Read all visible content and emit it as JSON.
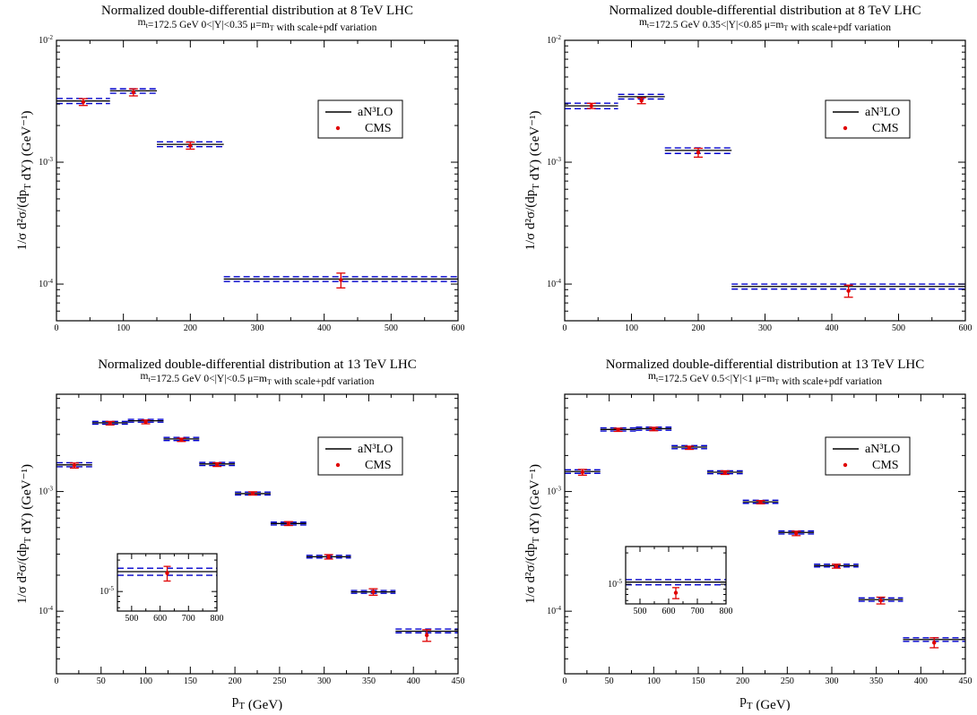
{
  "legend": {
    "theory_label": "aN³LO",
    "data_label": "CMS"
  },
  "common": {
    "ylabel": "1/σ  d²σ/(dp_T dY) (GeV⁻¹)",
    "xlabel": "p_T (GeV)"
  },
  "colors": {
    "theory_central": "#000000",
    "theory_band": "#0000cc",
    "data": "#e00000"
  },
  "chart_data": [
    {
      "type": "scatter",
      "title": "Normalized double-differential distribution at 8 TeV LHC",
      "subtitle": "m_t=172.5 GeV     0<|Y|<0.35     μ=m_T  with scale+pdf variation",
      "xlabel": "",
      "xlim": [
        0,
        600
      ],
      "xticks": [
        0,
        100,
        200,
        300,
        400,
        500,
        600
      ],
      "ylim": [
        5e-05,
        0.01
      ],
      "ylog": true,
      "yticks": [
        0.0001,
        0.001,
        0.01
      ],
      "ytick_labels": [
        "10^-4",
        "10^-3",
        "10^-2"
      ],
      "legend_position": "center-right",
      "bins": [
        {
          "x0": 0,
          "x1": 80,
          "central": 0.00318,
          "lo": 0.00303,
          "hi": 0.00333
        },
        {
          "x0": 80,
          "x1": 150,
          "central": 0.00385,
          "lo": 0.00368,
          "hi": 0.004
        },
        {
          "x0": 150,
          "x1": 250,
          "central": 0.0014,
          "lo": 0.00134,
          "hi": 0.00147
        },
        {
          "x0": 250,
          "x1": 600,
          "central": 0.00011,
          "lo": 0.000105,
          "hi": 0.000115
        }
      ],
      "cms": [
        {
          "x": 40,
          "y": 0.00312,
          "ylo": 0.00292,
          "yhi": 0.00332
        },
        {
          "x": 115,
          "y": 0.00375,
          "ylo": 0.0035,
          "yhi": 0.004
        },
        {
          "x": 200,
          "y": 0.00137,
          "ylo": 0.00128,
          "yhi": 0.00146
        },
        {
          "x": 425,
          "y": 0.000108,
          "ylo": 9.3e-05,
          "yhi": 0.000123
        }
      ]
    },
    {
      "type": "scatter",
      "title": "Normalized double-differential distribution at 8 TeV LHC",
      "subtitle": "m_t=172.5 GeV     0.35<|Y|<0.85     μ=m_T  with scale+pdf variation",
      "xlabel": "",
      "xlim": [
        0,
        600
      ],
      "xticks": [
        0,
        100,
        200,
        300,
        400,
        500,
        600
      ],
      "ylim": [
        5e-05,
        0.01
      ],
      "ylog": true,
      "yticks": [
        0.0001,
        0.001,
        0.01
      ],
      "ytick_labels": [
        "10^-4",
        "10^-3",
        "10^-2"
      ],
      "legend_position": "center-right",
      "bins": [
        {
          "x0": 0,
          "x1": 80,
          "central": 0.0029,
          "lo": 0.00275,
          "hi": 0.00305
        },
        {
          "x0": 80,
          "x1": 150,
          "central": 0.00345,
          "lo": 0.0033,
          "hi": 0.0036
        },
        {
          "x0": 150,
          "x1": 250,
          "central": 0.00125,
          "lo": 0.00118,
          "hi": 0.00131
        },
        {
          "x0": 250,
          "x1": 600,
          "central": 9.55e-05,
          "lo": 9.1e-05,
          "hi": 0.0001
        }
      ],
      "cms": [
        {
          "x": 40,
          "y": 0.0029,
          "ylo": 0.00276,
          "yhi": 0.00304
        },
        {
          "x": 115,
          "y": 0.0032,
          "ylo": 0.00302,
          "yhi": 0.00338
        },
        {
          "x": 200,
          "y": 0.0012,
          "ylo": 0.0011,
          "yhi": 0.0013
        },
        {
          "x": 425,
          "y": 8.8e-05,
          "ylo": 7.8e-05,
          "yhi": 9.8e-05
        }
      ]
    },
    {
      "type": "scatter",
      "title": "Normalized double-differential distribution at 13 TeV LHC",
      "subtitle": "m_t=172.5 GeV     0<|Y|<0.5     μ=m_T  with scale+pdf variation",
      "xlabel": "p_T (GeV)",
      "xlim": [
        0,
        450
      ],
      "xticks": [
        0,
        50,
        100,
        150,
        200,
        250,
        300,
        350,
        400,
        450
      ],
      "ylim": [
        3e-05,
        0.0065
      ],
      "ylog": true,
      "yticks": [
        0.0001,
        0.001
      ],
      "ytick_labels": [
        "10^-4",
        "10^-3"
      ],
      "legend_position": "center-right",
      "bins": [
        {
          "x0": 0,
          "x1": 40,
          "central": 0.00167,
          "lo": 0.00161,
          "hi": 0.00174
        },
        {
          "x0": 40,
          "x1": 80,
          "central": 0.00375,
          "lo": 0.00365,
          "hi": 0.00385
        },
        {
          "x0": 80,
          "x1": 120,
          "central": 0.0039,
          "lo": 0.0038,
          "hi": 0.00401
        },
        {
          "x0": 120,
          "x1": 160,
          "central": 0.00275,
          "lo": 0.00267,
          "hi": 0.00283
        },
        {
          "x0": 160,
          "x1": 200,
          "central": 0.0017,
          "lo": 0.00165,
          "hi": 0.00175
        },
        {
          "x0": 200,
          "x1": 240,
          "central": 0.00096,
          "lo": 0.000935,
          "hi": 0.00099
        },
        {
          "x0": 240,
          "x1": 280,
          "central": 0.00054,
          "lo": 0.000525,
          "hi": 0.000555
        },
        {
          "x0": 280,
          "x1": 330,
          "central": 0.000285,
          "lo": 0.000278,
          "hi": 0.000293
        },
        {
          "x0": 330,
          "x1": 380,
          "central": 0.000145,
          "lo": 0.000141,
          "hi": 0.000149
        },
        {
          "x0": 380,
          "x1": 450,
          "central": 6.8e-05,
          "lo": 6.6e-05,
          "hi": 7.1e-05
        }
      ],
      "cms": [
        {
          "x": 20,
          "y": 0.00165,
          "ylo": 0.00157,
          "yhi": 0.00173
        },
        {
          "x": 60,
          "y": 0.00372,
          "ylo": 0.0036,
          "yhi": 0.00385
        },
        {
          "x": 100,
          "y": 0.00382,
          "ylo": 0.00368,
          "yhi": 0.00396
        },
        {
          "x": 140,
          "y": 0.0027,
          "ylo": 0.00262,
          "yhi": 0.00279
        },
        {
          "x": 180,
          "y": 0.00168,
          "ylo": 0.00162,
          "yhi": 0.00174
        },
        {
          "x": 220,
          "y": 0.000965,
          "ylo": 0.000935,
          "yhi": 0.000995
        },
        {
          "x": 260,
          "y": 0.00054,
          "ylo": 0.00052,
          "yhi": 0.00056
        },
        {
          "x": 305,
          "y": 0.000285,
          "ylo": 0.000273,
          "yhi": 0.000297
        },
        {
          "x": 355,
          "y": 0.000145,
          "ylo": 0.000136,
          "yhi": 0.000154
        },
        {
          "x": 415,
          "y": 6.3e-05,
          "ylo": 5.6e-05,
          "yhi": 7e-05
        }
      ],
      "inset": {
        "xlim": [
          450,
          800
        ],
        "xticks": [
          500,
          600,
          700,
          800
        ],
        "ylim": [
          6.5e-06,
          2.3e-05
        ],
        "ylog": true,
        "yticks": [
          1e-05
        ],
        "ytick_labels": [
          "10^-5"
        ],
        "bins": [
          {
            "x0": 450,
            "x1": 800,
            "central": 1.55e-05,
            "lo": 1.43e-05,
            "hi": 1.67e-05
          }
        ],
        "cms": [
          {
            "x": 625,
            "y": 1.5e-05,
            "ylo": 1.26e-05,
            "yhi": 1.74e-05
          }
        ]
      }
    },
    {
      "type": "scatter",
      "title": "Normalized double-differential distribution at 13 TeV LHC",
      "subtitle": "m_t=172.5 GeV     0.5<|Y|<1     μ=m_T  with scale+pdf variation",
      "xlabel": "p_T (GeV)",
      "xlim": [
        0,
        450
      ],
      "xticks": [
        0,
        50,
        100,
        150,
        200,
        250,
        300,
        350,
        400,
        450
      ],
      "ylim": [
        3e-05,
        0.0065
      ],
      "ylog": true,
      "yticks": [
        0.0001,
        0.001
      ],
      "ytick_labels": [
        "10^-4",
        "10^-3"
      ],
      "legend_position": "center-right",
      "bins": [
        {
          "x0": 0,
          "x1": 40,
          "central": 0.00147,
          "lo": 0.00142,
          "hi": 0.00152
        },
        {
          "x0": 40,
          "x1": 80,
          "central": 0.0033,
          "lo": 0.0032,
          "hi": 0.0034
        },
        {
          "x0": 80,
          "x1": 120,
          "central": 0.00335,
          "lo": 0.00325,
          "hi": 0.00345
        },
        {
          "x0": 120,
          "x1": 160,
          "central": 0.00235,
          "lo": 0.00228,
          "hi": 0.00242
        },
        {
          "x0": 160,
          "x1": 200,
          "central": 0.00145,
          "lo": 0.00141,
          "hi": 0.00149
        },
        {
          "x0": 200,
          "x1": 240,
          "central": 0.00082,
          "lo": 0.000797,
          "hi": 0.000845
        },
        {
          "x0": 240,
          "x1": 280,
          "central": 0.000455,
          "lo": 0.000442,
          "hi": 0.000468
        },
        {
          "x0": 280,
          "x1": 330,
          "central": 0.00024,
          "lo": 0.000234,
          "hi": 0.000247
        },
        {
          "x0": 330,
          "x1": 380,
          "central": 0.000125,
          "lo": 0.000121,
          "hi": 0.000129
        },
        {
          "x0": 380,
          "x1": 450,
          "central": 5.8e-05,
          "lo": 5.6e-05,
          "hi": 6e-05
        }
      ],
      "cms": [
        {
          "x": 20,
          "y": 0.00145,
          "ylo": 0.00137,
          "yhi": 0.00153
        },
        {
          "x": 60,
          "y": 0.00328,
          "ylo": 0.00318,
          "yhi": 0.00338
        },
        {
          "x": 100,
          "y": 0.00333,
          "ylo": 0.00322,
          "yhi": 0.00344
        },
        {
          "x": 140,
          "y": 0.00232,
          "ylo": 0.00225,
          "yhi": 0.00239
        },
        {
          "x": 180,
          "y": 0.00144,
          "ylo": 0.00139,
          "yhi": 0.00149
        },
        {
          "x": 220,
          "y": 0.000815,
          "ylo": 0.00079,
          "yhi": 0.00084
        },
        {
          "x": 260,
          "y": 0.000447,
          "ylo": 0.000428,
          "yhi": 0.000466
        },
        {
          "x": 305,
          "y": 0.000238,
          "ylo": 0.000229,
          "yhi": 0.000247
        },
        {
          "x": 355,
          "y": 0.000123,
          "ylo": 0.000115,
          "yhi": 0.000131
        },
        {
          "x": 415,
          "y": 5.45e-05,
          "ylo": 4.95e-05,
          "yhi": 6e-05
        }
      ],
      "inset": {
        "xlim": [
          450,
          800
        ],
        "xticks": [
          500,
          600,
          700,
          800
        ],
        "ylim": [
          6.5e-06,
          2.3e-05
        ],
        "ylog": true,
        "yticks": [
          1e-05
        ],
        "ytick_labels": [
          "10^-5"
        ],
        "bins": [
          {
            "x0": 450,
            "x1": 800,
            "central": 1.05e-05,
            "lo": 9.9e-06,
            "hi": 1.11e-05
          }
        ],
        "cms": [
          {
            "x": 625,
            "y": 8.3e-06,
            "ylo": 7.3e-06,
            "yhi": 9.3e-06
          }
        ]
      }
    }
  ]
}
